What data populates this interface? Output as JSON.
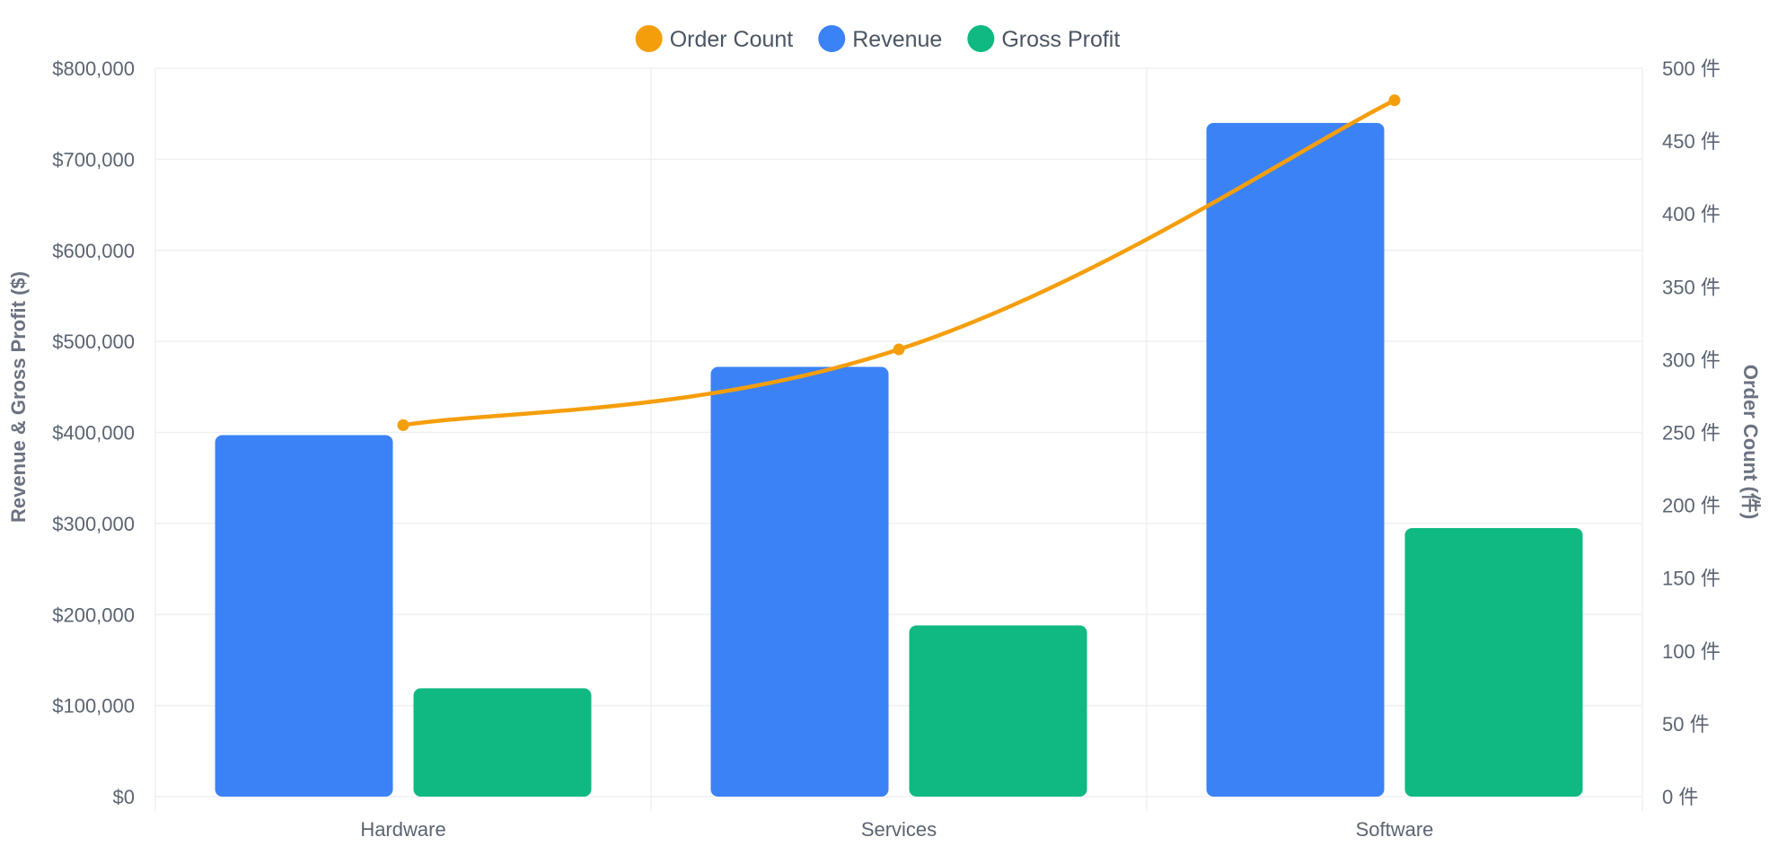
{
  "chart_data": {
    "type": "bar",
    "categories": [
      "Hardware",
      "Services",
      "Software"
    ],
    "series": [
      {
        "name": "Revenue",
        "type": "bar",
        "axis": "left",
        "color": "#3b82f6",
        "values": [
          397000,
          472000,
          740000
        ]
      },
      {
        "name": "Gross Profit",
        "type": "bar",
        "axis": "left",
        "color": "#10b981",
        "values": [
          119000,
          188000,
          295000
        ]
      },
      {
        "name": "Order Count",
        "type": "line",
        "axis": "right",
        "color": "#f59e0b",
        "values": [
          255,
          307,
          478
        ]
      }
    ],
    "legend": {
      "position": "top-center",
      "order": [
        "Order Count",
        "Revenue",
        "Gross Profit"
      ]
    },
    "y_left": {
      "label": "Revenue & Gross Profit ($)",
      "lim": [
        0,
        800000
      ],
      "ticks": [
        0,
        100000,
        200000,
        300000,
        400000,
        500000,
        600000,
        700000,
        800000
      ],
      "tick_labels": [
        "$0",
        "$100,000",
        "$200,000",
        "$300,000",
        "$400,000",
        "$500,000",
        "$600,000",
        "$700,000",
        "$800,000"
      ]
    },
    "y_right": {
      "label": "Order Count (件)",
      "lim": [
        0,
        500
      ],
      "ticks": [
        0,
        50,
        100,
        150,
        200,
        250,
        300,
        350,
        400,
        450,
        500
      ],
      "tick_labels": [
        "0 件",
        "50 件",
        "100 件",
        "150 件",
        "200 件",
        "250 件",
        "300 件",
        "350 件",
        "400 件",
        "450 件",
        "500 件"
      ]
    },
    "grid": true
  }
}
